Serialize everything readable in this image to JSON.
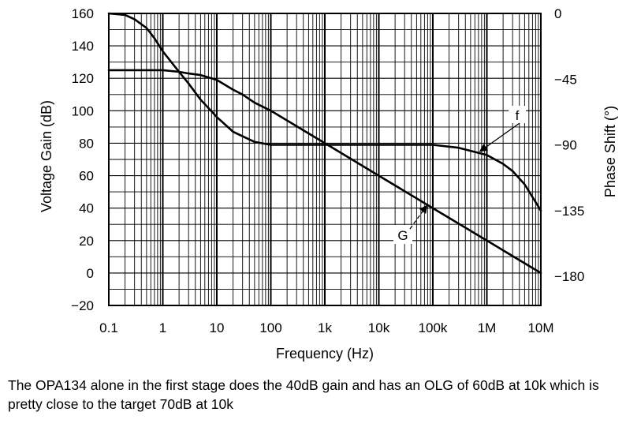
{
  "chart_data": {
    "type": "line",
    "xlabel": "Frequency (Hz)",
    "ylabel": "Voltage Gain (dB)",
    "y2label": "Phase Shift (°)",
    "x_scale": "log",
    "xlim": [
      0.1,
      10000000
    ],
    "ylim": [
      -20,
      160
    ],
    "y2lim": [
      -200,
      0
    ],
    "grid": true,
    "x_ticks": [
      {
        "value": 0.1,
        "label": "0.1"
      },
      {
        "value": 1,
        "label": "1"
      },
      {
        "value": 10,
        "label": "10"
      },
      {
        "value": 100,
        "label": "100"
      },
      {
        "value": 1000,
        "label": "1k"
      },
      {
        "value": 10000,
        "label": "10k"
      },
      {
        "value": 100000,
        "label": "100k"
      },
      {
        "value": 1000000,
        "label": "1M"
      },
      {
        "value": 10000000,
        "label": "10M"
      }
    ],
    "y_ticks": [
      {
        "value": 160,
        "label": "160"
      },
      {
        "value": 140,
        "label": "140"
      },
      {
        "value": 120,
        "label": "120"
      },
      {
        "value": 100,
        "label": "100"
      },
      {
        "value": 80,
        "label": "80"
      },
      {
        "value": 60,
        "label": "60"
      },
      {
        "value": 40,
        "label": "40"
      },
      {
        "value": 20,
        "label": "20"
      },
      {
        "value": 0,
        "label": "0"
      },
      {
        "value": -20,
        "label": "−20"
      }
    ],
    "y2_ticks": [
      {
        "value": 0,
        "label": "0"
      },
      {
        "value": -45,
        "label": "−45"
      },
      {
        "value": -90,
        "label": "−90"
      },
      {
        "value": -135,
        "label": "−135"
      },
      {
        "value": -180,
        "label": "−180"
      }
    ],
    "series": [
      {
        "name": "G",
        "axis": "left",
        "x": [
          0.1,
          0.3,
          1,
          2,
          3,
          5,
          10,
          20,
          30,
          50,
          100,
          1000,
          10000,
          100000,
          1000000,
          10000000
        ],
        "y": [
          125,
          125,
          125,
          124,
          123,
          122,
          119,
          113,
          110,
          105,
          100,
          80,
          60,
          40,
          20,
          0
        ]
      },
      {
        "name": "f",
        "axis": "right",
        "x": [
          0.1,
          0.2,
          0.3,
          0.5,
          0.7,
          1,
          2,
          3,
          5,
          10,
          20,
          50,
          100,
          300,
          1000,
          10000,
          100000,
          300000,
          1000000,
          2000000,
          3000000,
          5000000,
          10000000
        ],
        "y": [
          0,
          -1,
          -4,
          -10,
          -17,
          -26,
          -40,
          -48,
          -59,
          -71,
          -81,
          -88,
          -90,
          -90,
          -90,
          -90,
          -90,
          -92,
          -97,
          -103,
          -108,
          -117,
          -135
        ]
      }
    ],
    "annotations": [
      {
        "text": "f",
        "target_series": "f"
      },
      {
        "text": "G",
        "target_series": "G"
      }
    ]
  },
  "caption": "The OPA134 alone in the first stage does the 40dB gain and has an OLG of 60dB at 10k which is pretty close to the target 70dB at 10k"
}
